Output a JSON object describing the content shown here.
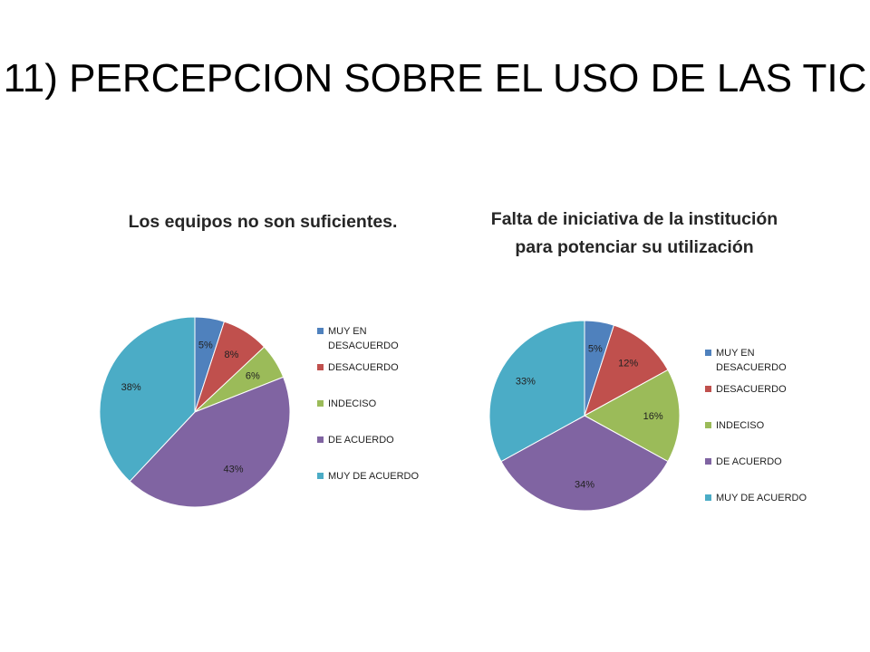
{
  "slide": {
    "title": "11) PERCEPCION SOBRE EL USO DE LAS TIC"
  },
  "chart_data": [
    {
      "type": "pie",
      "title": "Los equipos no son suficientes.",
      "legend_position": "right",
      "categories": [
        "MUY EN DESACUERDO",
        "DESACUERDO",
        "INDECISO",
        "DE ACUERDO",
        "MUY DE ACUERDO"
      ],
      "values": [
        5,
        8,
        6,
        43,
        38
      ],
      "labels": [
        "5%",
        "8%",
        "6%",
        "43%",
        "38%"
      ],
      "colors": [
        "#4F81BD",
        "#C0504D",
        "#9BBB59",
        "#8064A2",
        "#4BACC6"
      ]
    },
    {
      "type": "pie",
      "title": "Falta de iniciativa de la institución para potenciar su utilización",
      "legend_position": "right",
      "categories": [
        "MUY EN DESACUERDO",
        "DESACUERDO",
        "INDECISO",
        "DE ACUERDO",
        "MUY DE ACUERDO"
      ],
      "values": [
        5,
        12,
        16,
        34,
        33
      ],
      "labels": [
        "5%",
        "12%",
        "16%",
        "34%",
        "33%"
      ],
      "colors": [
        "#4F81BD",
        "#C0504D",
        "#9BBB59",
        "#8064A2",
        "#4BACC6"
      ]
    }
  ]
}
